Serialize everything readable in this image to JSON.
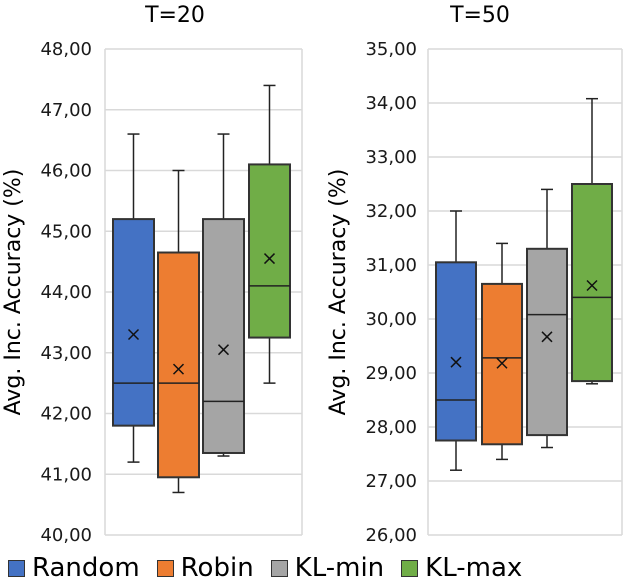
{
  "chart_data": [
    {
      "type": "box",
      "title": "T=20",
      "ylabel": "Avg. Inc. Accuracy (%)",
      "ylim": [
        40,
        48
      ],
      "ytick_labels": [
        "40,00",
        "41,00",
        "42,00",
        "43,00",
        "44,00",
        "45,00",
        "46,00",
        "47,00",
        "48,00"
      ],
      "grid": true,
      "series": [
        {
          "name": "Random",
          "min": 41.2,
          "q1": 41.8,
          "median": 42.5,
          "mean": 43.3,
          "q3": 45.2,
          "max": 46.6
        },
        {
          "name": "Robin",
          "min": 40.7,
          "q1": 40.95,
          "median": 42.5,
          "mean": 42.73,
          "q3": 44.65,
          "max": 46.0
        },
        {
          "name": "KL-min",
          "min": 41.3,
          "q1": 41.35,
          "median": 42.2,
          "mean": 43.05,
          "q3": 45.2,
          "max": 46.6
        },
        {
          "name": "KL-max",
          "min": 42.5,
          "q1": 43.25,
          "median": 44.1,
          "mean": 44.55,
          "q3": 46.1,
          "max": 47.4
        }
      ]
    },
    {
      "type": "box",
      "title": "T=50",
      "ylabel": "Avg. Inc. Accuracy (%)",
      "ylim": [
        26,
        35
      ],
      "ytick_labels": [
        "26,00",
        "27,00",
        "28,00",
        "29,00",
        "30,00",
        "31,00",
        "32,00",
        "33,00",
        "34,00",
        "35,00"
      ],
      "grid": true,
      "series": [
        {
          "name": "Random",
          "min": 27.2,
          "q1": 27.75,
          "median": 28.5,
          "mean": 29.2,
          "q3": 31.05,
          "max": 32.0
        },
        {
          "name": "Robin",
          "min": 27.4,
          "q1": 27.68,
          "median": 29.28,
          "mean": 29.18,
          "q3": 30.65,
          "max": 31.4
        },
        {
          "name": "KL-min",
          "min": 27.62,
          "q1": 27.85,
          "median": 30.08,
          "mean": 29.67,
          "q3": 31.3,
          "max": 32.4
        },
        {
          "name": "KL-max",
          "min": 28.8,
          "q1": 28.85,
          "median": 30.4,
          "mean": 30.62,
          "q3": 32.5,
          "max": 34.08
        }
      ]
    }
  ],
  "legend": {
    "position": "bottom",
    "items": [
      {
        "label": "Random",
        "color": "#4472C4"
      },
      {
        "label": "Robin",
        "color": "#ED7D31"
      },
      {
        "label": "KL-min",
        "color": "#A5A5A5"
      },
      {
        "label": "KL-max",
        "color": "#70AD47"
      }
    ]
  }
}
